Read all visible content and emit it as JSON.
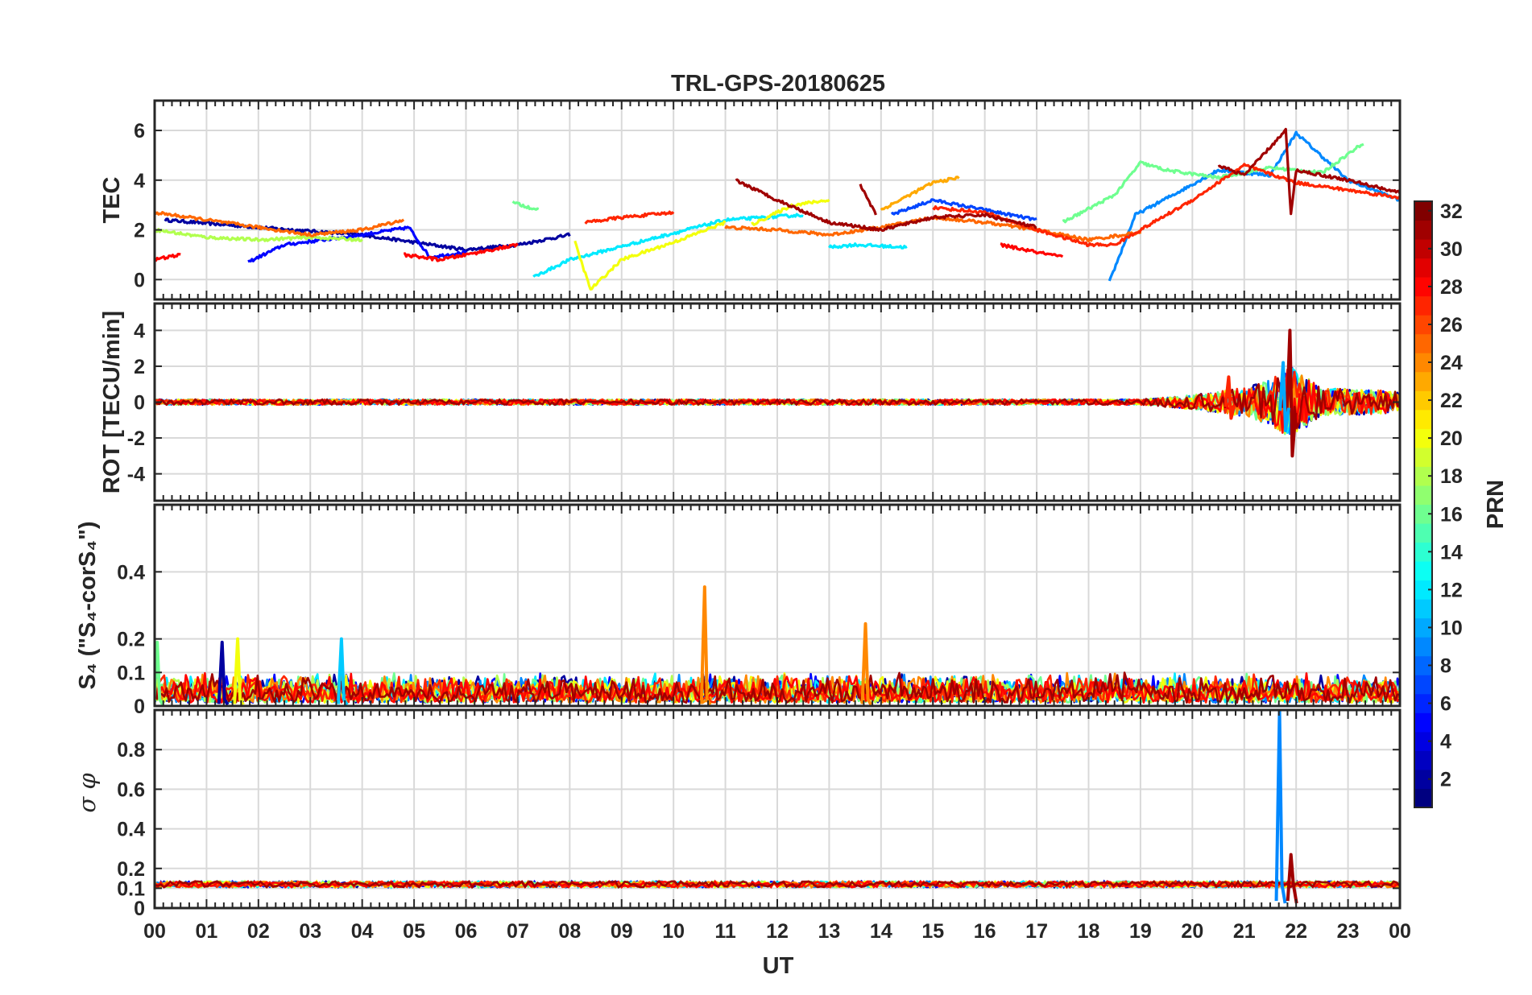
{
  "title": "TRL-GPS-20180625",
  "x_label": "UT",
  "x_ticks": [
    "00",
    "01",
    "02",
    "03",
    "04",
    "05",
    "06",
    "07",
    "08",
    "09",
    "10",
    "11",
    "12",
    "13",
    "14",
    "15",
    "16",
    "17",
    "18",
    "19",
    "20",
    "21",
    "22",
    "23",
    "00"
  ],
  "colorbar": {
    "label": "PRN",
    "range": [
      1,
      32
    ],
    "ticks": [
      2,
      4,
      6,
      8,
      10,
      12,
      14,
      16,
      18,
      20,
      22,
      24,
      26,
      28,
      30,
      32
    ],
    "colormap": "jet",
    "grid": true
  },
  "chart_data": [
    {
      "type": "line",
      "id": "tec",
      "ylabel": "TEC",
      "ylim": [
        -0.8,
        7.2
      ],
      "yticks": [
        0,
        2,
        4,
        6
      ],
      "grid": true,
      "series": [
        {
          "prn": 2,
          "x": [
            0.2,
            2.0,
            4.0,
            5.0,
            6.0,
            7.0,
            8.0
          ],
          "y": [
            2.4,
            2.1,
            1.8,
            1.5,
            1.2,
            1.4,
            1.8
          ]
        },
        {
          "prn": 5,
          "x": [
            1.8,
            2.5,
            4.0,
            4.9,
            5.3,
            6.0
          ],
          "y": [
            0.7,
            1.4,
            1.8,
            2.1,
            0.9,
            1.1
          ]
        },
        {
          "prn": 7,
          "x": [
            14.2,
            15.0,
            16.0,
            17.0
          ],
          "y": [
            2.6,
            3.2,
            2.8,
            2.4
          ]
        },
        {
          "prn": 9,
          "x": [
            18.4,
            18.9,
            19.8,
            20.5,
            21.5,
            22.0,
            23.0,
            24.0
          ],
          "y": [
            -0.1,
            2.6,
            3.6,
            4.4,
            4.2,
            5.9,
            4.0,
            3.2
          ]
        },
        {
          "prn": 12,
          "x": [
            13.0,
            13.5,
            14.5
          ],
          "y": [
            1.3,
            1.4,
            1.3
          ]
        },
        {
          "prn": 12,
          "x": [
            7.3,
            8.0,
            9.5,
            11.0,
            12.5
          ],
          "y": [
            0.1,
            0.8,
            1.6,
            2.4,
            2.6
          ]
        },
        {
          "prn": 16,
          "x": [
            6.9,
            7.4
          ],
          "y": [
            3.1,
            2.8
          ]
        },
        {
          "prn": 16,
          "x": [
            17.5,
            18.5,
            19.0,
            19.5,
            20.5,
            21.5,
            22.5,
            23.3
          ],
          "y": [
            2.3,
            3.4,
            4.7,
            4.4,
            4.1,
            4.5,
            4.3,
            5.5
          ]
        },
        {
          "prn": 18,
          "x": [
            0.0,
            1.0,
            2.0,
            3.0,
            4.0
          ],
          "y": [
            2.0,
            1.7,
            1.6,
            1.7,
            1.6
          ]
        },
        {
          "prn": 20,
          "x": [
            8.1,
            8.4,
            9.0,
            10.0,
            11.0
          ],
          "y": [
            1.5,
            -0.4,
            0.8,
            1.5,
            2.3
          ]
        },
        {
          "prn": 20,
          "x": [
            11.5,
            12.3,
            13.0
          ],
          "y": [
            2.2,
            3.0,
            3.2
          ]
        },
        {
          "prn": 23,
          "x": [
            14.0,
            15.0,
            15.5
          ],
          "y": [
            2.8,
            3.9,
            4.1
          ]
        },
        {
          "prn": 25,
          "x": [
            0.0,
            1.0,
            2.0,
            3.0,
            4.0,
            4.8
          ],
          "y": [
            2.7,
            2.4,
            2.1,
            1.8,
            2.0,
            2.4
          ]
        },
        {
          "prn": 25,
          "x": [
            11.0,
            12.0,
            13.0,
            14.0,
            15.0,
            16.0,
            17.0,
            18.0,
            19.0
          ],
          "y": [
            2.1,
            2.0,
            1.8,
            2.1,
            2.5,
            2.3,
            2.0,
            1.6,
            1.9
          ]
        },
        {
          "prn": 27,
          "x": [
            8.3,
            9.0,
            10.0
          ],
          "y": [
            2.3,
            2.5,
            2.7
          ]
        },
        {
          "prn": 27,
          "x": [
            15.0,
            16.0,
            17.0,
            18.0,
            18.5,
            19.0,
            20.0,
            21.0,
            22.0,
            23.0,
            24.0
          ],
          "y": [
            2.9,
            2.7,
            2.0,
            1.4,
            1.4,
            2.0,
            3.2,
            4.6,
            3.9,
            3.6,
            3.3
          ]
        },
        {
          "prn": 28,
          "x": [
            0.0,
            0.5
          ],
          "y": [
            0.8,
            1.0
          ]
        },
        {
          "prn": 28,
          "x": [
            4.8,
            5.5,
            6.5,
            7.0
          ],
          "y": [
            1.0,
            0.8,
            1.2,
            1.4
          ]
        },
        {
          "prn": 28,
          "x": [
            16.3,
            17.0,
            17.5
          ],
          "y": [
            1.4,
            1.1,
            0.9
          ]
        },
        {
          "prn": 31,
          "x": [
            11.2,
            12.0,
            13.0,
            14.0,
            15.0,
            16.0,
            17.0
          ],
          "y": [
            4.0,
            3.2,
            2.3,
            2.0,
            2.5,
            2.6,
            2.1
          ]
        },
        {
          "prn": 31,
          "x": [
            13.6,
            13.9
          ],
          "y": [
            3.8,
            2.6
          ]
        },
        {
          "prn": 31,
          "x": [
            20.5,
            21.0,
            21.8,
            21.9,
            22.0,
            23.0,
            24.0
          ],
          "y": [
            4.6,
            4.2,
            6.0,
            2.6,
            4.4,
            4.0,
            3.5
          ]
        }
      ]
    },
    {
      "type": "line",
      "id": "rot",
      "ylabel": "ROT [TECU/min]",
      "ylim": [
        -5.5,
        5.5
      ],
      "yticks": [
        -4,
        -2,
        0,
        2,
        4
      ],
      "grid": true,
      "noise_band": {
        "x": [
          0,
          19,
          20,
          21,
          21.5,
          21.9,
          22.5,
          24
        ],
        "amplitude": [
          0.15,
          0.15,
          0.4,
          0.8,
          1.3,
          2.0,
          0.8,
          0.6
        ]
      },
      "spikes": [
        {
          "prn": 31,
          "x": 21.88,
          "max": 4.0,
          "min": -3.0
        },
        {
          "prn": 10,
          "x": 21.75,
          "max": 2.2,
          "min": -1.6
        },
        {
          "prn": 27,
          "x": 20.7,
          "max": 1.4,
          "min": -0.9
        }
      ]
    },
    {
      "type": "line",
      "id": "s4",
      "ylabel": "S₄ (\"S₄-corS₄\")",
      "ylim": [
        0,
        0.6
      ],
      "yticks": [
        0,
        0.1,
        0.2,
        0.4
      ],
      "grid": true,
      "noise_band": {
        "x": [
          0,
          24
        ],
        "amplitude": [
          0.09,
          0.09
        ]
      },
      "spikes": [
        {
          "prn": 24,
          "x": 10.6,
          "max": 0.355
        },
        {
          "prn": 24,
          "x": 13.7,
          "max": 0.245
        },
        {
          "prn": 20,
          "x": 1.6,
          "max": 0.2
        },
        {
          "prn": 2,
          "x": 1.3,
          "max": 0.19
        },
        {
          "prn": 11,
          "x": 3.6,
          "max": 0.2
        },
        {
          "prn": 16,
          "x": 0.05,
          "max": 0.19
        }
      ]
    },
    {
      "type": "line",
      "id": "sigma_phi",
      "ylabel": "σ φ",
      "ylim": [
        0,
        1.0
      ],
      "yticks": [
        0,
        0.1,
        0.2,
        0.4,
        0.6,
        0.8
      ],
      "grid": true,
      "baseline": 0.12,
      "spikes": [
        {
          "prn": 9,
          "x": 21.68,
          "max": 1.0
        },
        {
          "prn": 31,
          "x": 21.9,
          "max": 0.27
        }
      ]
    }
  ]
}
